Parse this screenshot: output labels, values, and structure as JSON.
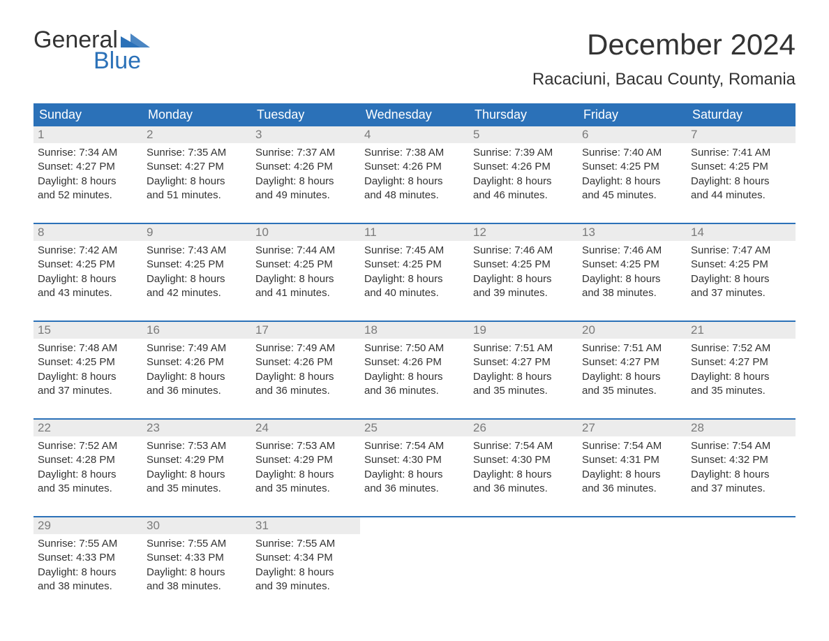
{
  "logo": {
    "word1": "General",
    "word2": "Blue"
  },
  "title": "December 2024",
  "location": "Racaciuni, Bacau County, Romania",
  "colors": {
    "header_bg": "#2b71b8",
    "header_text": "#ffffff",
    "daynum_bg": "#ececec",
    "daynum_text": "#7a7a7a",
    "body_text": "#333333",
    "accent_border": "#2b71b8",
    "page_bg": "#ffffff"
  },
  "typography": {
    "title_fontsize": 42,
    "location_fontsize": 24,
    "dayhead_fontsize": 18,
    "daynum_fontsize": 17,
    "body_fontsize": 15,
    "logo_fontsize": 34
  },
  "day_headers": [
    "Sunday",
    "Monday",
    "Tuesday",
    "Wednesday",
    "Thursday",
    "Friday",
    "Saturday"
  ],
  "weeks": [
    [
      {
        "n": "1",
        "sunrise": "Sunrise: 7:34 AM",
        "sunset": "Sunset: 4:27 PM",
        "dl1": "Daylight: 8 hours",
        "dl2": "and 52 minutes."
      },
      {
        "n": "2",
        "sunrise": "Sunrise: 7:35 AM",
        "sunset": "Sunset: 4:27 PM",
        "dl1": "Daylight: 8 hours",
        "dl2": "and 51 minutes."
      },
      {
        "n": "3",
        "sunrise": "Sunrise: 7:37 AM",
        "sunset": "Sunset: 4:26 PM",
        "dl1": "Daylight: 8 hours",
        "dl2": "and 49 minutes."
      },
      {
        "n": "4",
        "sunrise": "Sunrise: 7:38 AM",
        "sunset": "Sunset: 4:26 PM",
        "dl1": "Daylight: 8 hours",
        "dl2": "and 48 minutes."
      },
      {
        "n": "5",
        "sunrise": "Sunrise: 7:39 AM",
        "sunset": "Sunset: 4:26 PM",
        "dl1": "Daylight: 8 hours",
        "dl2": "and 46 minutes."
      },
      {
        "n": "6",
        "sunrise": "Sunrise: 7:40 AM",
        "sunset": "Sunset: 4:25 PM",
        "dl1": "Daylight: 8 hours",
        "dl2": "and 45 minutes."
      },
      {
        "n": "7",
        "sunrise": "Sunrise: 7:41 AM",
        "sunset": "Sunset: 4:25 PM",
        "dl1": "Daylight: 8 hours",
        "dl2": "and 44 minutes."
      }
    ],
    [
      {
        "n": "8",
        "sunrise": "Sunrise: 7:42 AM",
        "sunset": "Sunset: 4:25 PM",
        "dl1": "Daylight: 8 hours",
        "dl2": "and 43 minutes."
      },
      {
        "n": "9",
        "sunrise": "Sunrise: 7:43 AM",
        "sunset": "Sunset: 4:25 PM",
        "dl1": "Daylight: 8 hours",
        "dl2": "and 42 minutes."
      },
      {
        "n": "10",
        "sunrise": "Sunrise: 7:44 AM",
        "sunset": "Sunset: 4:25 PM",
        "dl1": "Daylight: 8 hours",
        "dl2": "and 41 minutes."
      },
      {
        "n": "11",
        "sunrise": "Sunrise: 7:45 AM",
        "sunset": "Sunset: 4:25 PM",
        "dl1": "Daylight: 8 hours",
        "dl2": "and 40 minutes."
      },
      {
        "n": "12",
        "sunrise": "Sunrise: 7:46 AM",
        "sunset": "Sunset: 4:25 PM",
        "dl1": "Daylight: 8 hours",
        "dl2": "and 39 minutes."
      },
      {
        "n": "13",
        "sunrise": "Sunrise: 7:46 AM",
        "sunset": "Sunset: 4:25 PM",
        "dl1": "Daylight: 8 hours",
        "dl2": "and 38 minutes."
      },
      {
        "n": "14",
        "sunrise": "Sunrise: 7:47 AM",
        "sunset": "Sunset: 4:25 PM",
        "dl1": "Daylight: 8 hours",
        "dl2": "and 37 minutes."
      }
    ],
    [
      {
        "n": "15",
        "sunrise": "Sunrise: 7:48 AM",
        "sunset": "Sunset: 4:25 PM",
        "dl1": "Daylight: 8 hours",
        "dl2": "and 37 minutes."
      },
      {
        "n": "16",
        "sunrise": "Sunrise: 7:49 AM",
        "sunset": "Sunset: 4:26 PM",
        "dl1": "Daylight: 8 hours",
        "dl2": "and 36 minutes."
      },
      {
        "n": "17",
        "sunrise": "Sunrise: 7:49 AM",
        "sunset": "Sunset: 4:26 PM",
        "dl1": "Daylight: 8 hours",
        "dl2": "and 36 minutes."
      },
      {
        "n": "18",
        "sunrise": "Sunrise: 7:50 AM",
        "sunset": "Sunset: 4:26 PM",
        "dl1": "Daylight: 8 hours",
        "dl2": "and 36 minutes."
      },
      {
        "n": "19",
        "sunrise": "Sunrise: 7:51 AM",
        "sunset": "Sunset: 4:27 PM",
        "dl1": "Daylight: 8 hours",
        "dl2": "and 35 minutes."
      },
      {
        "n": "20",
        "sunrise": "Sunrise: 7:51 AM",
        "sunset": "Sunset: 4:27 PM",
        "dl1": "Daylight: 8 hours",
        "dl2": "and 35 minutes."
      },
      {
        "n": "21",
        "sunrise": "Sunrise: 7:52 AM",
        "sunset": "Sunset: 4:27 PM",
        "dl1": "Daylight: 8 hours",
        "dl2": "and 35 minutes."
      }
    ],
    [
      {
        "n": "22",
        "sunrise": "Sunrise: 7:52 AM",
        "sunset": "Sunset: 4:28 PM",
        "dl1": "Daylight: 8 hours",
        "dl2": "and 35 minutes."
      },
      {
        "n": "23",
        "sunrise": "Sunrise: 7:53 AM",
        "sunset": "Sunset: 4:29 PM",
        "dl1": "Daylight: 8 hours",
        "dl2": "and 35 minutes."
      },
      {
        "n": "24",
        "sunrise": "Sunrise: 7:53 AM",
        "sunset": "Sunset: 4:29 PM",
        "dl1": "Daylight: 8 hours",
        "dl2": "and 35 minutes."
      },
      {
        "n": "25",
        "sunrise": "Sunrise: 7:54 AM",
        "sunset": "Sunset: 4:30 PM",
        "dl1": "Daylight: 8 hours",
        "dl2": "and 36 minutes."
      },
      {
        "n": "26",
        "sunrise": "Sunrise: 7:54 AM",
        "sunset": "Sunset: 4:30 PM",
        "dl1": "Daylight: 8 hours",
        "dl2": "and 36 minutes."
      },
      {
        "n": "27",
        "sunrise": "Sunrise: 7:54 AM",
        "sunset": "Sunset: 4:31 PM",
        "dl1": "Daylight: 8 hours",
        "dl2": "and 36 minutes."
      },
      {
        "n": "28",
        "sunrise": "Sunrise: 7:54 AM",
        "sunset": "Sunset: 4:32 PM",
        "dl1": "Daylight: 8 hours",
        "dl2": "and 37 minutes."
      }
    ],
    [
      {
        "n": "29",
        "sunrise": "Sunrise: 7:55 AM",
        "sunset": "Sunset: 4:33 PM",
        "dl1": "Daylight: 8 hours",
        "dl2": "and 38 minutes."
      },
      {
        "n": "30",
        "sunrise": "Sunrise: 7:55 AM",
        "sunset": "Sunset: 4:33 PM",
        "dl1": "Daylight: 8 hours",
        "dl2": "and 38 minutes."
      },
      {
        "n": "31",
        "sunrise": "Sunrise: 7:55 AM",
        "sunset": "Sunset: 4:34 PM",
        "dl1": "Daylight: 8 hours",
        "dl2": "and 39 minutes."
      },
      null,
      null,
      null,
      null
    ]
  ]
}
